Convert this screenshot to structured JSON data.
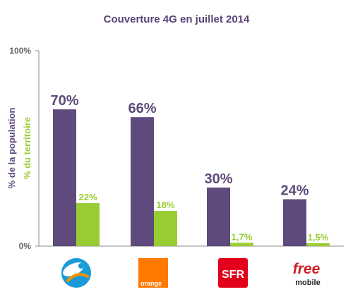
{
  "colors": {
    "population": "#5e4a7c",
    "territory": "#99cc33",
    "title": "#5a4378",
    "axis": "#888888"
  },
  "chart_data": {
    "type": "bar",
    "title": "Couverture 4G en juillet 2014",
    "ylabel": "% de la population",
    "ylabel2": "% du territoire",
    "ylim": [
      0,
      100
    ],
    "yticks": [
      "100%",
      "0%"
    ],
    "grid": false,
    "categories": [
      "Bouygues Telecom",
      "Orange",
      "SFR",
      "Free Mobile"
    ],
    "series": [
      {
        "name": "% de la population",
        "values": [
          70,
          66,
          30,
          24
        ],
        "labels": [
          "70%",
          "66%",
          "30%",
          "24%"
        ]
      },
      {
        "name": "% du territoire",
        "values": [
          22,
          18,
          1.7,
          1.5
        ],
        "labels": [
          "22%",
          "18%",
          "1,7%",
          "1,5%"
        ]
      }
    ]
  },
  "logos": {
    "orange": "orange",
    "sfr": "SFR",
    "free": "free",
    "free_sub": "mobile"
  }
}
